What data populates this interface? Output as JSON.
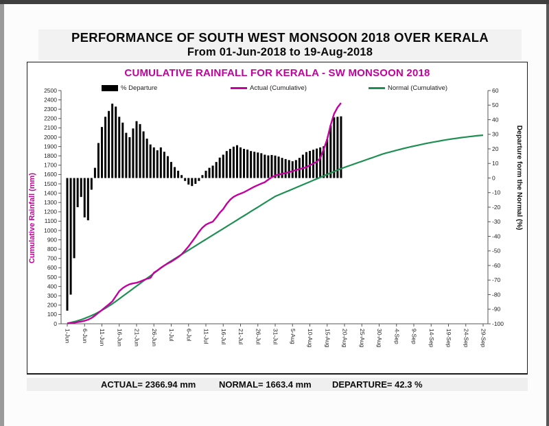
{
  "page": {
    "title_line1": "PERFORMANCE OF SOUTH WEST MONSOON 2018 OVER KERALA",
    "title_line2": "From 01-Jun-2018 to 19-Aug-2018"
  },
  "chart_data": {
    "type": "bar+line combo",
    "title": "CUMULATIVE RAINFALL FOR KERALA - SW MONSOON 2018",
    "legend": [
      {
        "label": "% Departure",
        "swatch": "bar",
        "color": "#000000"
      },
      {
        "label": "Actual (Cumulative)",
        "swatch": "line",
        "color": "#C4009E"
      },
      {
        "label": "Normal (Cumulative)",
        "swatch": "line",
        "color": "#1E8F52"
      }
    ],
    "y_left": {
      "title": "Cumulative Rainfall (mm)",
      "min": 0,
      "max": 2500,
      "tick_step": 100,
      "color": "#C4009E"
    },
    "y_right": {
      "title": "Departure form the Normal (%)",
      "min": -100,
      "max": 60,
      "tick_step": 10,
      "color": "#111111"
    },
    "x_axis": {
      "tick_interval_days": 5,
      "series_start": "1-Jun",
      "series_end": "19-Aug",
      "axis_end": "29-Sep",
      "tick_labels": [
        "1-Jun",
        "6-Jun",
        "11-Jun",
        "16-Jun",
        "21-Jun",
        "26-Jun",
        "1-Jul",
        "6-Jul",
        "11-Jul",
        "16-Jul",
        "21-Jul",
        "26-Jul",
        "31-Jul",
        "5-Aug",
        "10-Aug",
        "15-Aug",
        "20-Aug",
        "25-Aug",
        "30-Aug",
        "4-Sep",
        "9-Sep",
        "14-Sep",
        "19-Sep",
        "24-Sep",
        "29-Sep"
      ]
    },
    "grid": false,
    "legend_position": "top",
    "series": {
      "departure_pct": [
        -91,
        -80,
        -55,
        -20,
        -13,
        -27,
        -29,
        -8,
        7,
        24,
        35,
        42,
        46,
        51,
        49,
        42,
        38,
        31,
        28,
        34,
        39,
        37,
        32,
        27,
        23,
        21,
        19,
        21,
        18,
        15,
        11,
        7.5,
        5,
        2,
        -2,
        -4.5,
        -5.5,
        -4,
        -2,
        2,
        5,
        7,
        8.5,
        11,
        14,
        16,
        18.5,
        20,
        21.5,
        22.5,
        21,
        20,
        19.5,
        18.5,
        18,
        17.5,
        17,
        16,
        15.5,
        15.8,
        15.4,
        14.7,
        13.8,
        13,
        12.3,
        11.5,
        12.3,
        13.8,
        16,
        17.8,
        18.6,
        19.4,
        20.2,
        21,
        21.8,
        26.6,
        36,
        41.7,
        42,
        42.3
      ],
      "actual_cumulative_mm": [
        3,
        7,
        12,
        18,
        24,
        32,
        44,
        62,
        88,
        118,
        148,
        178,
        208,
        240,
        295,
        350,
        382,
        406,
        424,
        433,
        440,
        452,
        468,
        482,
        492,
        548,
        572,
        600,
        625,
        646,
        666,
        690,
        715,
        745,
        785,
        830,
        880,
        930,
        985,
        1030,
        1062,
        1080,
        1095,
        1140,
        1190,
        1230,
        1285,
        1330,
        1361,
        1380,
        1395,
        1410,
        1430,
        1450,
        1470,
        1487,
        1503,
        1518,
        1545,
        1570,
        1590,
        1600,
        1608,
        1616,
        1625,
        1636,
        1648,
        1658,
        1668,
        1678,
        1700,
        1718,
        1737,
        1775,
        1870,
        1980,
        2130,
        2250,
        2320,
        2366.94
      ],
      "normal_cumulative_mm": [
        6,
        13.4,
        22.3,
        32.6,
        44.3,
        57.4,
        72,
        88,
        105.4,
        124.3,
        144.6,
        166.3,
        189.4,
        214,
        240,
        267.4,
        294.8,
        322.2,
        349.6,
        377,
        404.4,
        431.8,
        459.2,
        486.6,
        514,
        541.4,
        568.8,
        596.2,
        623.6,
        651,
        674.1,
        697.1,
        720.2,
        743.2,
        766.3,
        789.3,
        812.4,
        835.4,
        858.5,
        881.5,
        904.6,
        927.6,
        950.7,
        973.7,
        996.8,
        1019.8,
        1042.9,
        1065.9,
        1089,
        1112,
        1135.1,
        1158.1,
        1181.2,
        1204.2,
        1227.3,
        1250.3,
        1273.4,
        1296.4,
        1319.5,
        1342.5,
        1365.6,
        1381.3,
        1397,
        1412.6,
        1428.3,
        1444,
        1459.6,
        1475.3,
        1491,
        1506.6,
        1522.3,
        1538,
        1553.6,
        1569.3,
        1585,
        1600.6,
        1616.3,
        1631.9,
        1647.6,
        1663.4,
        1676.4,
        1689.4,
        1702.4,
        1715.4,
        1728.4,
        1741.4,
        1754.4,
        1767.4,
        1780.4,
        1793.4,
        1806.4,
        1819.4,
        1829.8,
        1840,
        1850,
        1859.7,
        1869.2,
        1878.4,
        1887.4,
        1896.1,
        1904.6,
        1912.8,
        1920.8,
        1928.5,
        1936,
        1943.2,
        1950.2,
        1956.9,
        1963.4,
        1969.6,
        1975.6,
        1981.3,
        1986.8,
        1992,
        1997,
        2001.7,
        2006.2,
        2010.4,
        2014.4,
        2018.1,
        2021.6
      ]
    }
  },
  "footer": {
    "actual": "ACTUAL= 2366.94 mm",
    "normal": "NORMAL= 1663.4 mm",
    "departure": "DEPARTURE= 42.3 %"
  }
}
